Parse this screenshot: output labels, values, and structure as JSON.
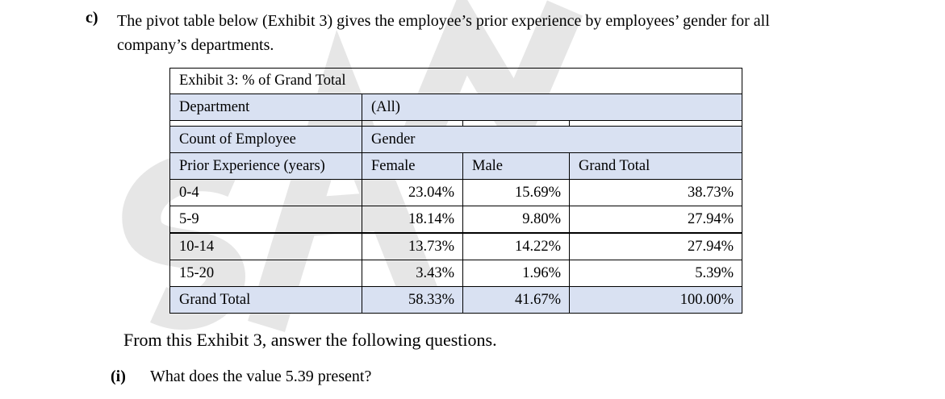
{
  "question": {
    "label": "c)",
    "text": "The pivot table below (Exhibit 3) gives the employee’s prior experience by employees’ gender for all company’s departments."
  },
  "exhibit": {
    "title": "Exhibit 3: % of Grand Total",
    "filter_label": "Department",
    "filter_value": "(All)",
    "measure_label": "Count of Employee",
    "column_field": "Gender",
    "row_field": "Prior Experience (years)",
    "columns": [
      "Female",
      "Male",
      "Grand Total"
    ],
    "rows": [
      {
        "label": "0-4",
        "female": "23.04%",
        "male": "15.69%",
        "total": "38.73%"
      },
      {
        "label": "5-9",
        "female": "18.14%",
        "male": "9.80%",
        "total": "27.94%"
      },
      {
        "label": "10-14",
        "female": "13.73%",
        "male": "14.22%",
        "total": "27.94%"
      },
      {
        "label": "15-20",
        "female": "3.43%",
        "male": "1.96%",
        "total": "5.39%"
      },
      {
        "label": "Grand Total",
        "female": "58.33%",
        "male": "41.67%",
        "total": "100.00%"
      }
    ],
    "header_band_color": "#d9e1f2"
  },
  "followup": "From this Exhibit 3, answer the following questions.",
  "subquestion": {
    "label": "(i)",
    "text": "What does the value 5.39 present?"
  },
  "watermark": {
    "color": "#e6e6e6"
  }
}
